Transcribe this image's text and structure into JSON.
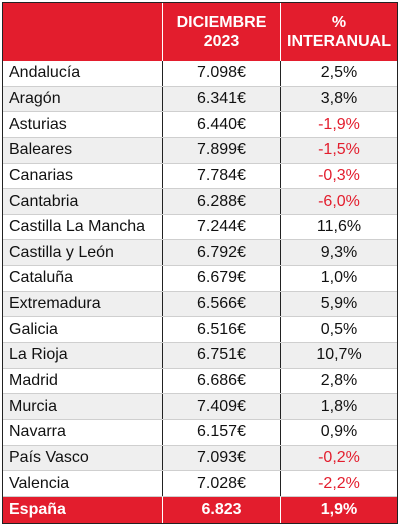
{
  "header": {
    "col1_line1": "DICIEMBRE",
    "col1_line2": "2023",
    "col2_line1": "%",
    "col2_line2": "INTERANUAL"
  },
  "colors": {
    "accent": "#e31d2d",
    "negative": "#e31d2d",
    "alt_row": "#efefef"
  },
  "rows": [
    {
      "region": "Andalucía",
      "price": "7.098€",
      "change": "2,5%",
      "negative": false
    },
    {
      "region": "Aragón",
      "price": "6.341€",
      "change": "3,8%",
      "negative": false
    },
    {
      "region": "Asturias",
      "price": "6.440€",
      "change": "-1,9%",
      "negative": true
    },
    {
      "region": "Baleares",
      "price": "7.899€",
      "change": "-1,5%",
      "negative": true
    },
    {
      "region": "Canarias",
      "price": "7.784€",
      "change": "-0,3%",
      "negative": true
    },
    {
      "region": "Cantabria",
      "price": "6.288€",
      "change": "-6,0%",
      "negative": true
    },
    {
      "region": "Castilla La Mancha",
      "price": "7.244€",
      "change": "11,6%",
      "negative": false
    },
    {
      "region": "Castilla y León",
      "price": "6.792€",
      "change": "9,3%",
      "negative": false
    },
    {
      "region": "Cataluña",
      "price": "6.679€",
      "change": "1,0%",
      "negative": false
    },
    {
      "region": "Extremadura",
      "price": "6.566€",
      "change": "5,9%",
      "negative": false
    },
    {
      "region": "Galicia",
      "price": "6.516€",
      "change": "0,5%",
      "negative": false
    },
    {
      "region": "La Rioja",
      "price": "6.751€",
      "change": "10,7%",
      "negative": false
    },
    {
      "region": "Madrid",
      "price": "6.686€",
      "change": "2,8%",
      "negative": false
    },
    {
      "region": "Murcia",
      "price": "7.409€",
      "change": "1,8%",
      "negative": false
    },
    {
      "region": "Navarra",
      "price": "6.157€",
      "change": "0,9%",
      "negative": false
    },
    {
      "region": "País Vasco",
      "price": "7.093€",
      "change": "-0,2%",
      "negative": true
    },
    {
      "region": "Valencia",
      "price": "7.028€",
      "change": "-2,2%",
      "negative": true
    }
  ],
  "total": {
    "region": "España",
    "price": "6.823",
    "change": "1,9%"
  }
}
